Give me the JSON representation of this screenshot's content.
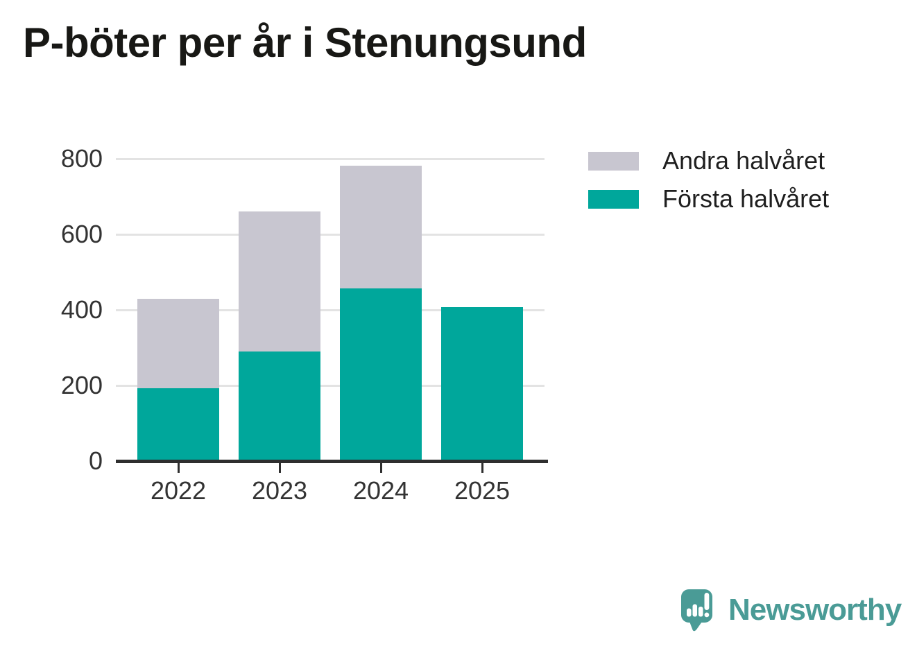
{
  "chart_data": {
    "type": "bar",
    "stacked": true,
    "title": "P-böter per år i Stenungsund",
    "categories": [
      "2022",
      "2023",
      "2024",
      "2025"
    ],
    "series": [
      {
        "name": "Första halvåret",
        "color": "#00a79b",
        "values": [
          192,
          290,
          457,
          407
        ]
      },
      {
        "name": "Andra halvåret",
        "color": "#c8c6d0",
        "values": [
          237,
          371,
          324,
          0
        ]
      }
    ],
    "totals": [
      429,
      661,
      781,
      407
    ],
    "xlabel": "",
    "ylabel": "",
    "yticks": [
      0,
      200,
      400,
      600,
      800
    ],
    "ylim": [
      0,
      800
    ],
    "grid": "horizontal",
    "legend_position": "right"
  },
  "legend": {
    "items": [
      {
        "label": "Andra halvåret",
        "color": "#c8c6d0"
      },
      {
        "label": "Första halvåret",
        "color": "#00a79b"
      }
    ]
  },
  "branding": {
    "logo_text": "Newsworthy",
    "logo_color": "#4a9b96",
    "icon": "newsworthy-speech-bubble-bar-chart-icon"
  },
  "colors": {
    "first_half": "#00a79b",
    "second_half": "#c8c6d0",
    "gridline": "#e3e3e3",
    "axis": "#2f2f2f",
    "tick_text": "#333333",
    "title_text": "#181815"
  }
}
